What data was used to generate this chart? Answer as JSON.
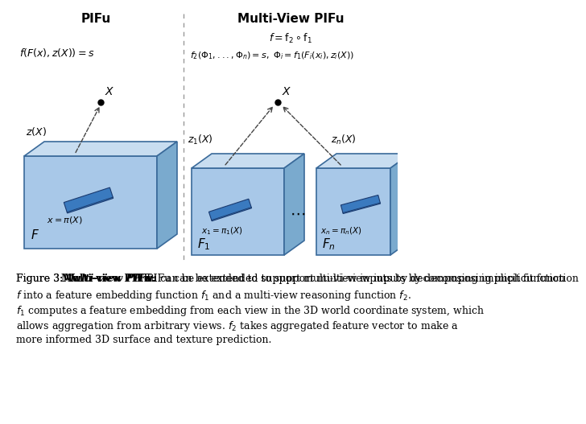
{
  "pifu_label": "PIFu",
  "multiview_label": "Multi-View PIFu",
  "eq_left": "$f(F(x), z(X)) = s$",
  "eq_right_top": "$f = \\mathrm{f}_2 \\circ \\mathrm{f}_1$",
  "eq_right_bot": "$f_2(\\Phi_1, ..., \\Phi_n) = s,\\ \\Phi_i = f_1(F_i(x_i), z_i(X))$",
  "label_F": "$F$",
  "label_F1": "$F_1$",
  "label_Fn": "$F_n$",
  "label_x": "$x = \\pi(X)$",
  "label_x1": "$x_1 = \\pi_1(X)$",
  "label_xn": "$x_n = \\pi_n(X)$",
  "label_zX": "$z(X)$",
  "label_z1X": "$z_1(X)$",
  "label_znX": "$z_n(X)$",
  "label_X": "$X$",
  "box_face_color": "#a8c8e8",
  "box_top_color": "#c8ddf0",
  "box_side_color": "#7aaace",
  "box_edge_color": "#3a6a9a",
  "divider_color": "#999999",
  "bg_color": "#ffffff",
  "fig_label": "Figure 3:",
  "fig_bold": "Multi-view PIFu:",
  "caption_line1": "PIFu can be extended to support multi-view inputs by decomposing implicit function",
  "caption_line2": "$f$ into a feature embedding function $f_1$ and a multi-view reasoning function $f_2$.",
  "caption_line3": "$f_1$ computes a feature embedding from each view in the 3D world coordinate system, which",
  "caption_line4": "allows aggregation from arbitrary views. $f_2$ takes aggregated feature vector to make a",
  "caption_line5": "more informed 3D surface and texture prediction."
}
